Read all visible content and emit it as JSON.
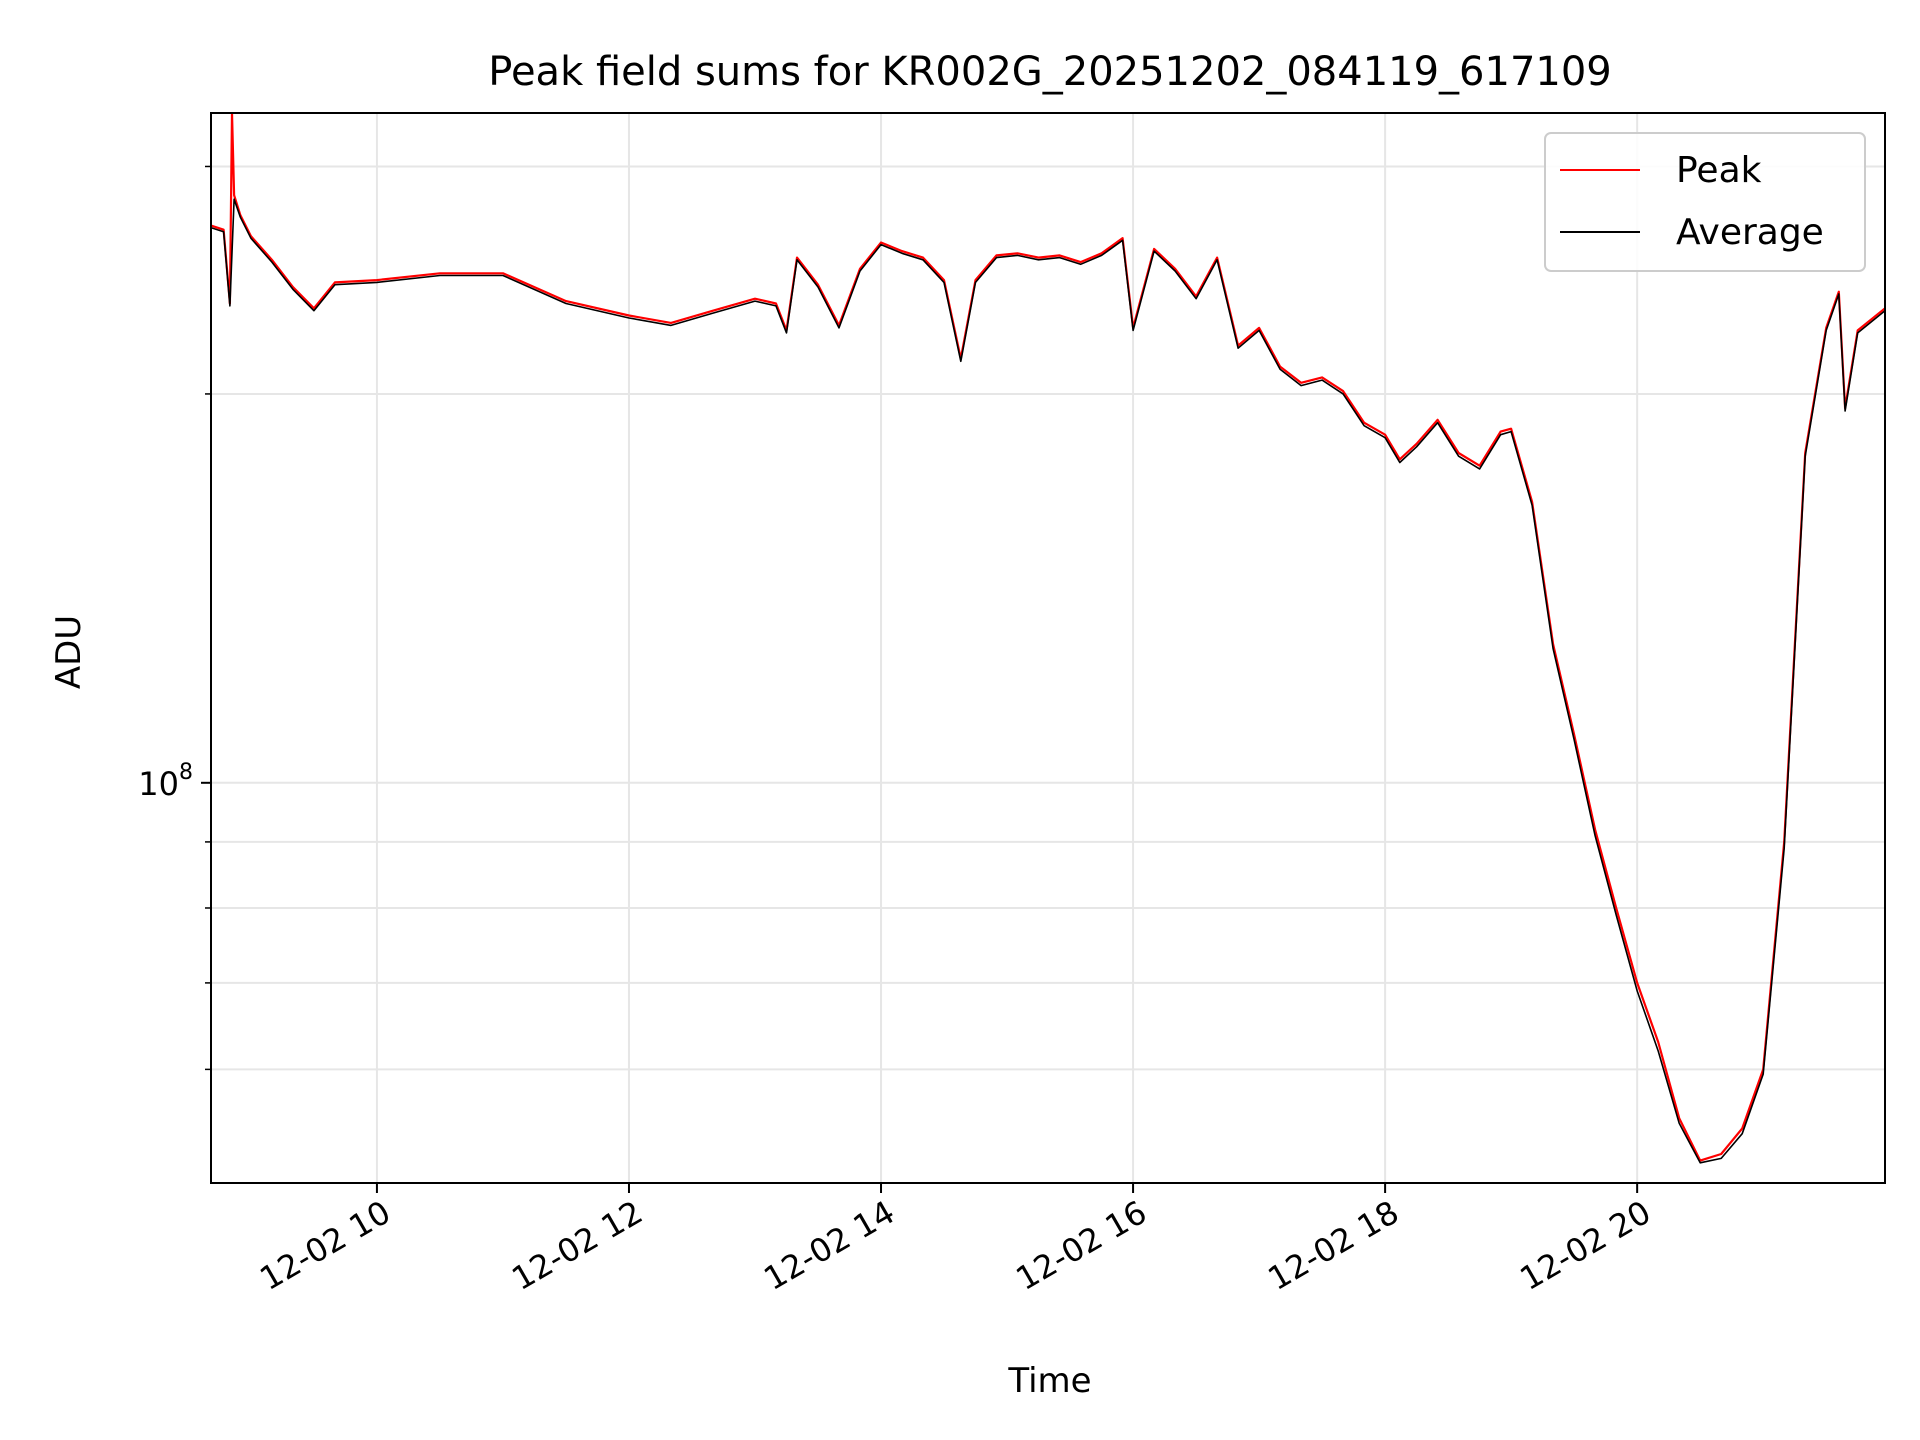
{
  "chart_data": {
    "type": "line",
    "title": "Peak field sums for KR002G_20251202_084119_617109",
    "xlabel": "Time",
    "ylabel": "ADU",
    "y_scale": "log",
    "ylim": [
      49000000,
      330000000
    ],
    "xlim": [
      "2025-12-02 08:41",
      "2025-12-02 21:58"
    ],
    "grid": true,
    "legend_position": "top-right",
    "x_ticks": [
      {
        "t": "2025-12-02 10:00",
        "label": "12-02 10"
      },
      {
        "t": "2025-12-02 12:00",
        "label": "12-02 12"
      },
      {
        "t": "2025-12-02 14:00",
        "label": "12-02 14"
      },
      {
        "t": "2025-12-02 16:00",
        "label": "12-02 16"
      },
      {
        "t": "2025-12-02 18:00",
        "label": "12-02 18"
      },
      {
        "t": "2025-12-02 20:00",
        "label": "12-02 20"
      }
    ],
    "y_ticks": [
      {
        "value": 100000000,
        "label": "10",
        "exponent": "8"
      }
    ],
    "y_minor_ticks": [
      60000000,
      70000000,
      80000000,
      90000000,
      200000000,
      300000000
    ],
    "colors": {
      "peak": "#ff0000",
      "average": "#000000"
    },
    "series": [
      {
        "name": "Peak",
        "color": "#ff0000",
        "x": [
          "2025-12-02 08:41",
          "2025-12-02 08:47",
          "2025-12-02 08:50",
          "2025-12-02 08:51",
          "2025-12-02 08:52",
          "2025-12-02 08:55",
          "2025-12-02 09:00",
          "2025-12-02 09:10",
          "2025-12-02 09:20",
          "2025-12-02 09:30",
          "2025-12-02 09:40",
          "2025-12-02 10:00",
          "2025-12-02 10:30",
          "2025-12-02 11:00",
          "2025-12-02 11:30",
          "2025-12-02 12:00",
          "2025-12-02 12:20",
          "2025-12-02 12:40",
          "2025-12-02 13:00",
          "2025-12-02 13:10",
          "2025-12-02 13:15",
          "2025-12-02 13:20",
          "2025-12-02 13:30",
          "2025-12-02 13:40",
          "2025-12-02 13:50",
          "2025-12-02 14:00",
          "2025-12-02 14:10",
          "2025-12-02 14:20",
          "2025-12-02 14:30",
          "2025-12-02 14:38",
          "2025-12-02 14:45",
          "2025-12-02 14:55",
          "2025-12-02 15:05",
          "2025-12-02 15:15",
          "2025-12-02 15:25",
          "2025-12-02 15:35",
          "2025-12-02 15:45",
          "2025-12-02 15:55",
          "2025-12-02 16:00",
          "2025-12-02 16:10",
          "2025-12-02 16:20",
          "2025-12-02 16:30",
          "2025-12-02 16:40",
          "2025-12-02 16:50",
          "2025-12-02 17:00",
          "2025-12-02 17:10",
          "2025-12-02 17:20",
          "2025-12-02 17:30",
          "2025-12-02 17:40",
          "2025-12-02 17:50",
          "2025-12-02 18:00",
          "2025-12-02 18:07",
          "2025-12-02 18:15",
          "2025-12-02 18:25",
          "2025-12-02 18:35",
          "2025-12-02 18:45",
          "2025-12-02 18:55",
          "2025-12-02 19:00",
          "2025-12-02 19:10",
          "2025-12-02 19:20",
          "2025-12-02 19:30",
          "2025-12-02 19:40",
          "2025-12-02 19:50",
          "2025-12-02 20:00",
          "2025-12-02 20:10",
          "2025-12-02 20:20",
          "2025-12-02 20:30",
          "2025-12-02 20:40",
          "2025-12-02 20:50",
          "2025-12-02 21:00",
          "2025-12-02 21:10",
          "2025-12-02 21:20",
          "2025-12-02 21:30",
          "2025-12-02 21:36",
          "2025-12-02 21:39",
          "2025-12-02 21:45",
          "2025-12-02 21:58"
        ],
        "y": [
          270000000,
          268000000,
          235000000,
          330000000,
          285000000,
          275000000,
          265000000,
          254000000,
          242000000,
          233000000,
          244000000,
          245000000,
          248000000,
          248000000,
          236000000,
          230000000,
          227000000,
          232000000,
          237000000,
          235000000,
          224000000,
          255000000,
          243000000,
          226000000,
          250000000,
          262000000,
          258000000,
          255000000,
          245000000,
          213000000,
          245000000,
          256000000,
          257000000,
          255000000,
          256000000,
          253000000,
          257000000,
          264000000,
          225000000,
          259000000,
          250000000,
          238000000,
          255000000,
          218000000,
          225000000,
          210000000,
          204000000,
          206000000,
          201000000,
          190000000,
          186000000,
          178000000,
          183000000,
          191000000,
          180000000,
          176000000,
          187000000,
          188000000,
          165000000,
          128000000,
          109000000,
          92000000,
          80000000,
          70000000,
          63000000,
          55000000,
          51000000,
          51600000,
          54000000,
          60000000,
          90000000,
          180000000,
          225000000,
          240000000,
          195000000,
          224000000,
          233000000
        ]
      },
      {
        "name": "Average",
        "color": "#000000",
        "x": [
          "2025-12-02 08:41",
          "2025-12-02 08:47",
          "2025-12-02 08:50",
          "2025-12-02 08:52",
          "2025-12-02 08:55",
          "2025-12-02 09:00",
          "2025-12-02 09:10",
          "2025-12-02 09:20",
          "2025-12-02 09:30",
          "2025-12-02 09:40",
          "2025-12-02 10:00",
          "2025-12-02 10:30",
          "2025-12-02 11:00",
          "2025-12-02 11:30",
          "2025-12-02 12:00",
          "2025-12-02 12:20",
          "2025-12-02 12:40",
          "2025-12-02 13:00",
          "2025-12-02 13:10",
          "2025-12-02 13:15",
          "2025-12-02 13:20",
          "2025-12-02 13:30",
          "2025-12-02 13:40",
          "2025-12-02 13:50",
          "2025-12-02 14:00",
          "2025-12-02 14:10",
          "2025-12-02 14:20",
          "2025-12-02 14:30",
          "2025-12-02 14:38",
          "2025-12-02 14:45",
          "2025-12-02 14:55",
          "2025-12-02 15:05",
          "2025-12-02 15:15",
          "2025-12-02 15:25",
          "2025-12-02 15:35",
          "2025-12-02 15:45",
          "2025-12-02 15:55",
          "2025-12-02 16:00",
          "2025-12-02 16:10",
          "2025-12-02 16:20",
          "2025-12-02 16:30",
          "2025-12-02 16:40",
          "2025-12-02 16:50",
          "2025-12-02 17:00",
          "2025-12-02 17:10",
          "2025-12-02 17:20",
          "2025-12-02 17:30",
          "2025-12-02 17:40",
          "2025-12-02 17:50",
          "2025-12-02 18:00",
          "2025-12-02 18:07",
          "2025-12-02 18:15",
          "2025-12-02 18:25",
          "2025-12-02 18:35",
          "2025-12-02 18:45",
          "2025-12-02 18:55",
          "2025-12-02 19:00",
          "2025-12-02 19:10",
          "2025-12-02 19:20",
          "2025-12-02 19:30",
          "2025-12-02 19:40",
          "2025-12-02 19:50",
          "2025-12-02 20:00",
          "2025-12-02 20:10",
          "2025-12-02 20:20",
          "2025-12-02 20:30",
          "2025-12-02 20:40",
          "2025-12-02 20:50",
          "2025-12-02 21:00",
          "2025-12-02 21:10",
          "2025-12-02 21:20",
          "2025-12-02 21:30",
          "2025-12-02 21:36",
          "2025-12-02 21:39",
          "2025-12-02 21:45",
          "2025-12-02 21:58"
        ],
        "y": [
          269000000,
          267000000,
          234000000,
          283000000,
          274000000,
          264000000,
          253000000,
          241000000,
          232000000,
          243000000,
          244000000,
          247000000,
          247000000,
          235000000,
          229000000,
          226000000,
          231000000,
          236000000,
          234000000,
          223000000,
          254000000,
          242000000,
          225000000,
          249000000,
          261000000,
          257000000,
          254000000,
          244000000,
          212000000,
          244000000,
          255000000,
          256000000,
          254000000,
          255000000,
          252000000,
          256000000,
          263000000,
          224000000,
          258000000,
          249000000,
          237000000,
          254000000,
          217000000,
          224000000,
          209000000,
          203000000,
          205000000,
          200000000,
          189000000,
          185000000,
          177000000,
          182000000,
          190000000,
          179000000,
          175000000,
          186000000,
          187000000,
          164000000,
          127000000,
          108000000,
          91000000,
          79000000,
          69000000,
          62000000,
          54500000,
          50800000,
          51200000,
          53500000,
          59500000,
          89000000,
          179000000,
          224000000,
          239000000,
          194000000,
          223000000,
          232000000
        ]
      }
    ]
  }
}
